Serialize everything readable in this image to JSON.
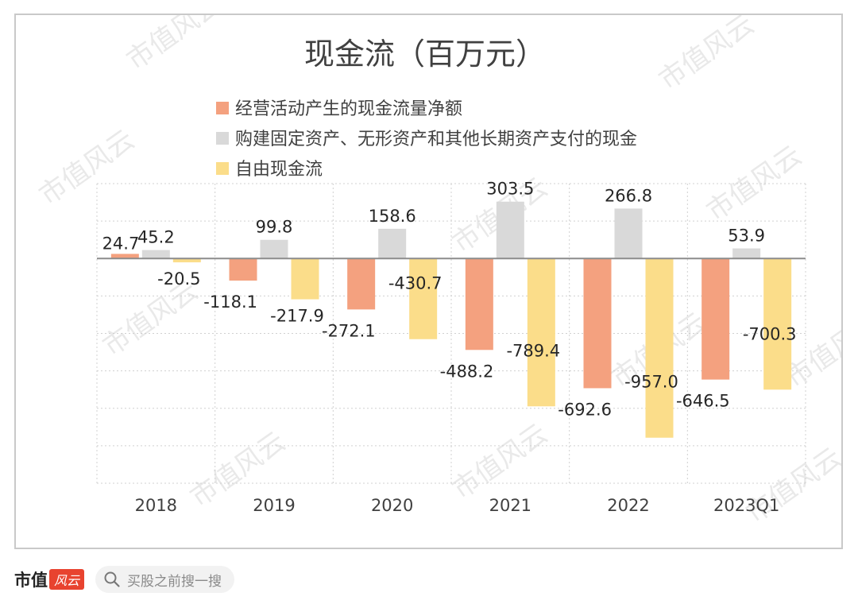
{
  "brand": {
    "name": "市值",
    "mark": "风云"
  },
  "search": {
    "placeholder": "买股之前搜一搜"
  },
  "watermark": "市值风云",
  "colors": {
    "operating": "#f4a17f",
    "capex": "#d9d9d9",
    "fcf": "#fbdd8a",
    "axis": "#8c8c8c"
  },
  "chart_data": {
    "type": "bar",
    "title": "现金流（百万元）",
    "categories": [
      "2018",
      "2019",
      "2020",
      "2021",
      "2022",
      "2023Q1"
    ],
    "series": [
      {
        "name": "经营活动产生的现金流量净额",
        "values": [
          24.7,
          -118.1,
          -272.1,
          -488.2,
          -692.6,
          -646.5
        ]
      },
      {
        "name": "购建固定资产、无形资产和其他长期资产支付的现金",
        "values": [
          45.2,
          99.8,
          158.6,
          303.5,
          266.8,
          53.9
        ]
      },
      {
        "name": "自由现金流",
        "values": [
          -20.5,
          -217.9,
          -430.7,
          -789.4,
          -957.0,
          -700.3
        ]
      }
    ],
    "data_labels": [
      [
        "24.7",
        "-118.1",
        "-272.1",
        "-488.2",
        "-692.6",
        "-646.5"
      ],
      [
        "45.2",
        "99.8",
        "158.6",
        "303.5",
        "266.8",
        "53.9"
      ],
      [
        "-20.5",
        "-217.9",
        "-430.7",
        "-789.4",
        "-957.0",
        "-700.3"
      ]
    ],
    "ylim": [
      -1200,
      400
    ],
    "grid": true,
    "legend": "top-left"
  }
}
